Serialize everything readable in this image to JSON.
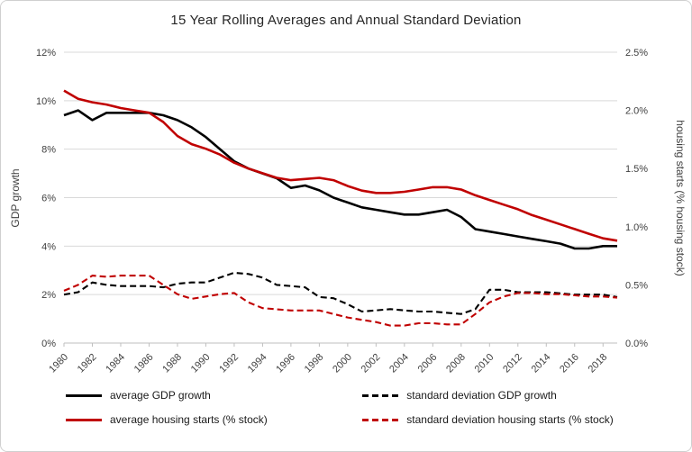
{
  "chart_data": {
    "type": "line",
    "title": "15 Year Rolling Averages and Annual Standard Deviation",
    "x": [
      1980,
      1981,
      1982,
      1983,
      1984,
      1985,
      1986,
      1987,
      1988,
      1989,
      1990,
      1991,
      1992,
      1993,
      1994,
      1995,
      1996,
      1997,
      1998,
      1999,
      2000,
      2001,
      2002,
      2003,
      2004,
      2005,
      2006,
      2007,
      2008,
      2009,
      2010,
      2011,
      2012,
      2013,
      2014,
      2015,
      2016,
      2017,
      2018,
      2019
    ],
    "x_tick_labels": [
      "1980",
      "1982",
      "1984",
      "1986",
      "1988",
      "1990",
      "1992",
      "1994",
      "1996",
      "1998",
      "2000",
      "2002",
      "2004",
      "2006",
      "2008",
      "2010",
      "2012",
      "2014",
      "2016",
      "2018"
    ],
    "y_left": {
      "label": "GDP growth",
      "min": 0,
      "max": 12,
      "ticks": [
        "0%",
        "2%",
        "4%",
        "6%",
        "8%",
        "10%",
        "12%"
      ]
    },
    "y_right": {
      "label": "housing starts (% housing stock)",
      "min": 0,
      "max": 2.5,
      "ticks": [
        "0.0%",
        "0.5%",
        "1.0%",
        "1.5%",
        "2.0%",
        "2.5%"
      ]
    },
    "series": [
      {
        "name": "average GDP growth",
        "axis": "left",
        "color": "#000000",
        "dash": "solid",
        "values": [
          9.4,
          9.6,
          9.2,
          9.5,
          9.5,
          9.5,
          9.5,
          9.4,
          9.2,
          8.9,
          8.5,
          8.0,
          7.5,
          7.2,
          7.0,
          6.8,
          6.4,
          6.5,
          6.3,
          6.0,
          5.8,
          5.6,
          5.5,
          5.4,
          5.3,
          5.3,
          5.4,
          5.5,
          5.2,
          4.7,
          4.6,
          4.5,
          4.4,
          4.3,
          4.2,
          4.1,
          3.9,
          3.9,
          4.0,
          4.0
        ]
      },
      {
        "name": "standard deviation GDP growth",
        "axis": "left",
        "color": "#000000",
        "dash": "dashed",
        "values": [
          2.0,
          2.1,
          2.5,
          2.4,
          2.35,
          2.35,
          2.35,
          2.3,
          2.45,
          2.5,
          2.5,
          2.7,
          2.9,
          2.85,
          2.7,
          2.4,
          2.35,
          2.3,
          1.9,
          1.85,
          1.6,
          1.3,
          1.35,
          1.4,
          1.35,
          1.3,
          1.3,
          1.25,
          1.2,
          1.4,
          2.2,
          2.2,
          2.1,
          2.1,
          2.1,
          2.05,
          2.0,
          2.0,
          2.0,
          1.9
        ]
      },
      {
        "name": "average housing starts (% stock)",
        "axis": "right",
        "color": "#C00000",
        "dash": "solid",
        "values": [
          2.17,
          2.1,
          2.07,
          2.05,
          2.02,
          2.0,
          1.98,
          1.9,
          1.78,
          1.71,
          1.67,
          1.62,
          1.55,
          1.5,
          1.46,
          1.42,
          1.4,
          1.41,
          1.42,
          1.4,
          1.35,
          1.31,
          1.29,
          1.29,
          1.3,
          1.32,
          1.34,
          1.34,
          1.32,
          1.27,
          1.23,
          1.19,
          1.15,
          1.1,
          1.06,
          1.02,
          0.98,
          0.94,
          0.9,
          0.88
        ]
      },
      {
        "name": "standard deviation housing starts (% stock)",
        "axis": "right",
        "color": "#C00000",
        "dash": "dashed",
        "values": [
          0.45,
          0.5,
          0.58,
          0.57,
          0.58,
          0.58,
          0.58,
          0.5,
          0.42,
          0.38,
          0.4,
          0.42,
          0.43,
          0.35,
          0.3,
          0.29,
          0.28,
          0.28,
          0.28,
          0.25,
          0.22,
          0.2,
          0.18,
          0.15,
          0.15,
          0.17,
          0.17,
          0.16,
          0.16,
          0.25,
          0.35,
          0.4,
          0.43,
          0.43,
          0.42,
          0.42,
          0.41,
          0.4,
          0.4,
          0.39
        ]
      }
    ],
    "layout": {
      "legend_position": "bottom",
      "grid": true,
      "gridline_color": "#d9d9d9",
      "axis_line_color": "#bfbfbf",
      "tick_color": "#404040",
      "title_color": "#262626"
    }
  }
}
